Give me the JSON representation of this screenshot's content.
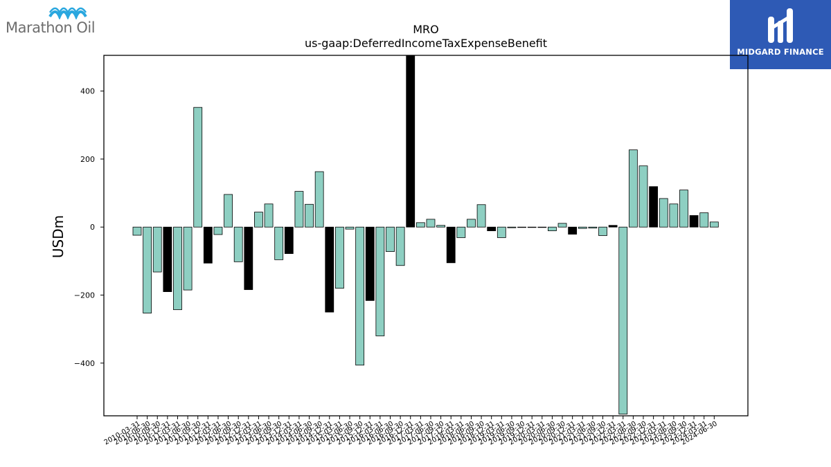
{
  "logos": {
    "left_text": "Marathon Oil",
    "right_text": "MIDGARD FINANCE"
  },
  "chart_data": {
    "type": "bar",
    "title": "MRO",
    "subtitle": "us-gaap:DeferredIncomeTaxExpenseBenefit",
    "xlabel": "",
    "ylabel": "USDm",
    "ylim": [
      -555,
      505
    ],
    "yticks": [
      -400,
      -200,
      0,
      200,
      400
    ],
    "ytick_labels": [
      "−400",
      "−200",
      "0",
      "200",
      "400"
    ],
    "grid": false,
    "colors": {
      "positive_quarter": "#8ecfc2",
      "q4_highlight": "#000000",
      "edge": "#000000"
    },
    "categories": [
      "2010-03-31",
      "2010-06-30",
      "2010-09-30",
      "2010-12-31",
      "2011-03-31",
      "2011-06-30",
      "2011-09-30",
      "2011-12-31",
      "2012-03-31",
      "2012-06-30",
      "2012-09-30",
      "2012-12-31",
      "2013-03-31",
      "2013-06-30",
      "2013-09-30",
      "2013-12-31",
      "2014-03-31",
      "2014-06-30",
      "2014-09-30",
      "2014-12-31",
      "2015-03-31",
      "2015-06-30",
      "2015-09-30",
      "2015-12-31",
      "2016-03-31",
      "2016-06-30",
      "2016-09-30",
      "2016-12-31",
      "2017-03-31",
      "2017-06-30",
      "2017-09-30",
      "2017-12-31",
      "2018-03-31",
      "2018-06-30",
      "2018-09-30",
      "2018-12-31",
      "2019-03-31",
      "2019-06-30",
      "2019-09-30",
      "2019-12-31",
      "2020-03-31",
      "2020-06-30",
      "2020-09-30",
      "2020-12-31",
      "2021-03-31",
      "2021-06-30",
      "2021-09-30",
      "2021-12-31",
      "2022-03-31",
      "2022-06-30",
      "2022-09-30",
      "2022-12-31",
      "2023-03-31",
      "2023-06-30",
      "2023-09-30",
      "2023-12-31",
      "2024-03-31",
      "2024-06-30"
    ],
    "values": [
      -24,
      -253,
      -132,
      -190,
      -243,
      -185,
      352,
      -106,
      -22,
      96,
      -102,
      -184,
      44,
      68,
      -96,
      -78,
      105,
      67,
      163,
      -250,
      -180,
      -6,
      -406,
      -216,
      -320,
      -72,
      -113,
      505,
      13,
      23,
      5,
      -105,
      -31,
      23,
      66,
      -11,
      -31,
      -2,
      -1,
      -1,
      -1,
      -11,
      11,
      -21,
      -4,
      -3,
      -25,
      5,
      -550,
      227,
      180,
      119,
      84,
      68,
      109,
      34,
      42,
      15
    ],
    "highlight": [
      false,
      false,
      false,
      true,
      false,
      false,
      false,
      true,
      false,
      false,
      false,
      true,
      false,
      false,
      false,
      true,
      false,
      false,
      false,
      true,
      false,
      false,
      false,
      true,
      false,
      false,
      false,
      true,
      false,
      false,
      false,
      true,
      false,
      false,
      false,
      true,
      false,
      false,
      false,
      true,
      false,
      false,
      false,
      true,
      false,
      false,
      false,
      true,
      false,
      false,
      false,
      true,
      false,
      false,
      false,
      true,
      false,
      false
    ]
  }
}
